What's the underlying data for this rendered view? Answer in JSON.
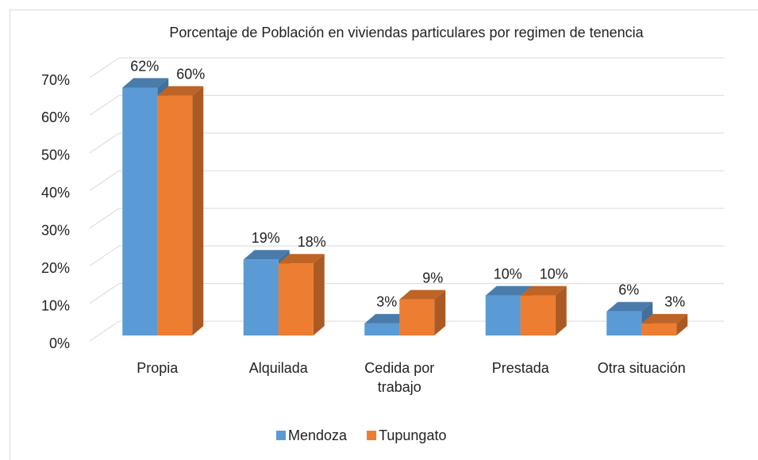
{
  "chart_data": {
    "type": "bar3d",
    "title": "Porcentaje  de Población en viviendas particulares por regimen de tenencia",
    "categories": [
      "Propia",
      "Alquilada",
      "Cedida por trabajo",
      "Prestada",
      "Otra situación"
    ],
    "series": [
      {
        "name": "Mendoza",
        "color": "#5b9bd5",
        "values": [
          62,
          19,
          3,
          10,
          6
        ],
        "value_labels": [
          "62%",
          "19%",
          "3%",
          "10%",
          "6%"
        ]
      },
      {
        "name": "Tupungato",
        "color": "#ed7d31",
        "values": [
          60,
          18,
          9,
          10,
          3
        ],
        "value_labels": [
          "60%",
          "18%",
          "9%",
          "10%",
          "3%"
        ]
      }
    ],
    "ylim": [
      0,
      70
    ],
    "yticks": [
      {
        "value": 0,
        "label": "0%"
      },
      {
        "value": 10,
        "label": "10%"
      },
      {
        "value": 20,
        "label": "20%"
      },
      {
        "value": 30,
        "label": "30%"
      },
      {
        "value": 40,
        "label": "40%"
      },
      {
        "value": 50,
        "label": "50%"
      },
      {
        "value": 60,
        "label": "60%"
      },
      {
        "value": 70,
        "label": "70%"
      }
    ],
    "grid": true,
    "legend": "bottom"
  }
}
